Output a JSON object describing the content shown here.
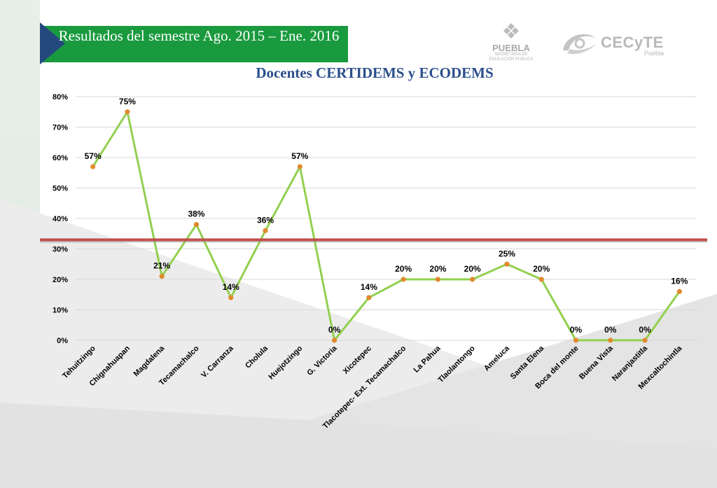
{
  "slide": {
    "title": "Resultados del semestre Ago. 2015 – Ene. 2016"
  },
  "logos": {
    "puebla_name": "PUEBLA",
    "puebla_sub": "SECRETARÍA DE EDUCACIÓN PÚBLICA",
    "cecyte_name": "CECyTE",
    "cecyte_sub": "Puebla"
  },
  "colors": {
    "banner": "#1a9a3e",
    "arrow": "#24497f",
    "line": "#92d050",
    "marker": "#e08a2e",
    "reference": "#c0504d",
    "title": "#2a4e8a"
  },
  "chart_data": {
    "type": "line",
    "title": "Docentes CERTIDEMS y ECODEMS",
    "xlabel": "",
    "ylabel": "",
    "ylim": [
      0,
      80
    ],
    "yticks": [
      "0%",
      "10%",
      "20%",
      "30%",
      "40%",
      "50%",
      "60%",
      "70%",
      "80%"
    ],
    "grid": true,
    "legend": "none",
    "categories": [
      "Tehuitzingo",
      "Chignahuapan",
      "Magdalena",
      "Tecamachalco",
      "V. Carranza",
      "Cholula",
      "Huejotzingo",
      "G. Victoria",
      "Xicotepec",
      "Tlacotepec- Ext. Tecamachalco",
      "La Pahua",
      "Tlaolantongo",
      "Ameluca",
      "Santa Elena",
      "Boca del monte",
      "Buena Vista",
      "Naranjastitla",
      "Mexcaltochintla"
    ],
    "series": [
      {
        "values": [
          57,
          75,
          21,
          38,
          14,
          36,
          57,
          0,
          14,
          20,
          20,
          20,
          25,
          20,
          0,
          0,
          0,
          16
        ],
        "labels": [
          "57%",
          "75%",
          "21%",
          "38%",
          "14%",
          "36%",
          "57%",
          "0%",
          "14%",
          "20%",
          "20%",
          "20%",
          "25%",
          "20%",
          "0%",
          "0%",
          "0%",
          "16%"
        ]
      }
    ],
    "reference_line": {
      "value": 33
    }
  }
}
